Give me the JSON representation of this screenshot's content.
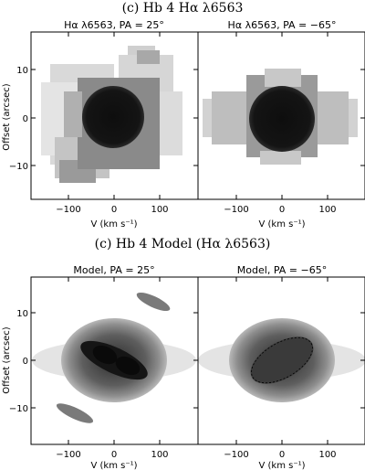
{
  "figure": {
    "title_top": "(c) Hb 4 Hα λ6563",
    "title_bottom": "(c) Hb 4 Model (Hα λ6563)"
  },
  "panels": {
    "top_left_label": "Hα λ6563, PA = 25°",
    "top_right_label": "Hα λ6563, PA = −65°",
    "bottom_left_label": "Model, PA = 25°",
    "bottom_right_label": "Model, PA = −65°"
  },
  "axes": {
    "ylabel": "Offset (arcsec)",
    "xlabel": "V (km s⁻¹)",
    "x_ticks": [
      "−100",
      "0",
      "100"
    ],
    "y_ticks": [
      "10",
      "0",
      "−10"
    ]
  },
  "colors": {
    "core": "#111111",
    "frame": "#000000"
  }
}
